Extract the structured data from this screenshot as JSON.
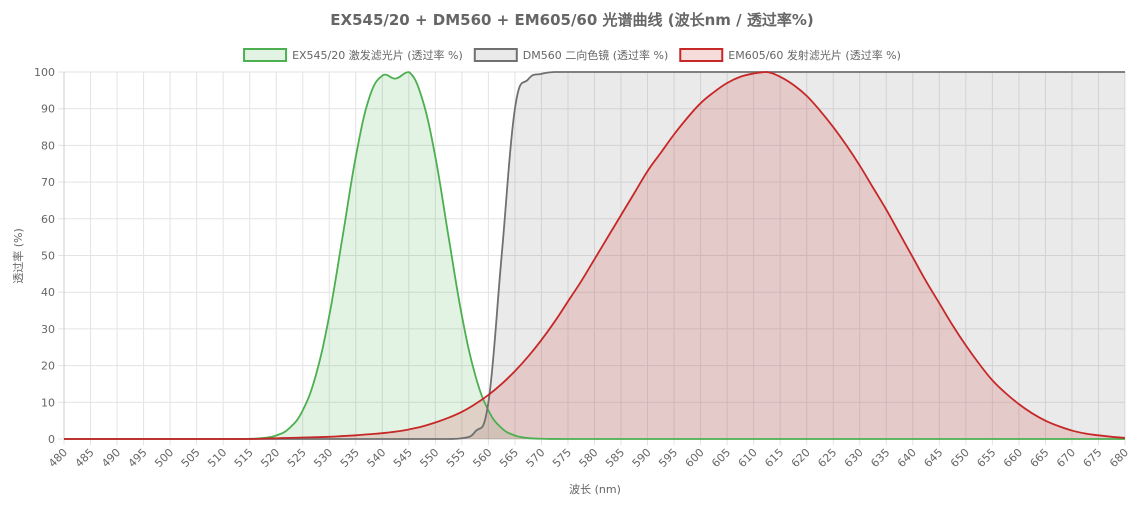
{
  "chart_data": {
    "type": "line",
    "title": "EX545/20 + DM560 + EM605/60 光谱曲线 (波长nm / 透过率%)",
    "xlabel": "波长 (nm)",
    "ylabel": "透过率 (%)",
    "xlim": [
      480,
      680
    ],
    "ylim": [
      0,
      100
    ],
    "x_ticks": [
      480,
      485,
      490,
      495,
      500,
      505,
      510,
      515,
      520,
      525,
      530,
      535,
      540,
      545,
      550,
      555,
      560,
      565,
      570,
      575,
      580,
      585,
      590,
      595,
      600,
      605,
      610,
      615,
      620,
      625,
      630,
      635,
      640,
      645,
      650,
      655,
      660,
      665,
      670,
      675,
      680
    ],
    "y_ticks": [
      0,
      10,
      20,
      30,
      40,
      50,
      60,
      70,
      80,
      90,
      100
    ],
    "grid": true,
    "legend_position": "top",
    "x": [
      480,
      482.5,
      485,
      487.5,
      490,
      492.5,
      495,
      497.5,
      500,
      502.5,
      505,
      507.5,
      510,
      512.5,
      515,
      517.5,
      520,
      522.5,
      525,
      527.5,
      530,
      532.5,
      535,
      537.5,
      540,
      542.5,
      545,
      547.5,
      550,
      552.5,
      555,
      557.5,
      560,
      562.5,
      565,
      567.5,
      570,
      572.5,
      575,
      577.5,
      580,
      582.5,
      585,
      587.5,
      590,
      592.5,
      595,
      597.5,
      600,
      602.5,
      605,
      607.5,
      610,
      612.5,
      615,
      617.5,
      620,
      622.5,
      625,
      627.5,
      630,
      632.5,
      635,
      637.5,
      640,
      642.5,
      645,
      647.5,
      650,
      652.5,
      655,
      657.5,
      660,
      662.5,
      665,
      667.5,
      670,
      672.5,
      675,
      677.5,
      680
    ],
    "series": [
      {
        "name": "EX545/20 激发滤光片 (透过率 %)",
        "color": "#4caf50",
        "fill": "rgba(76,175,80,0.16)",
        "values": [
          0,
          0,
          0,
          0,
          0,
          0,
          0,
          0,
          0,
          0,
          0,
          0,
          0,
          0.01,
          0.06,
          0.26,
          0.96,
          2.96,
          7.8,
          17.5,
          33.6,
          55.0,
          76.9,
          92.8,
          99.0,
          98.2,
          100,
          92.8,
          76.9,
          55.0,
          33.6,
          17.5,
          7.8,
          2.96,
          0.96,
          0.26,
          0.06,
          0.01,
          0,
          0,
          0,
          0,
          0,
          0,
          0,
          0,
          0,
          0,
          0,
          0,
          0,
          0,
          0,
          0,
          0,
          0,
          0,
          0,
          0,
          0,
          0,
          0,
          0,
          0,
          0,
          0,
          0,
          0,
          0,
          0,
          0,
          0,
          0,
          0,
          0,
          0,
          0,
          0,
          0,
          0,
          0
        ]
      },
      {
        "name": "DM560 二向色镜 (透过率 %)",
        "color": "#707070",
        "fill": "rgba(112,112,112,0.15)",
        "values": [
          0,
          0,
          0,
          0,
          0,
          0,
          0,
          0,
          0,
          0,
          0,
          0,
          0,
          0,
          0,
          0,
          0,
          0,
          0,
          0,
          0,
          0,
          0,
          0,
          0,
          0,
          0,
          0,
          0,
          0,
          0.2,
          2,
          10,
          50,
          90,
          98,
          99.5,
          100,
          100,
          100,
          100,
          100,
          100,
          100,
          100,
          100,
          100,
          100,
          100,
          100,
          100,
          100,
          100,
          100,
          100,
          100,
          100,
          100,
          100,
          100,
          100,
          100,
          100,
          100,
          100,
          100,
          100,
          100,
          100,
          100,
          100,
          100,
          100,
          100,
          100,
          100,
          100,
          100,
          100,
          100,
          100
        ]
      },
      {
        "name": "EM605/60 发射滤光片 (透过率 %)",
        "color": "#c62828",
        "fill": "rgba(213,60,60,0.18)",
        "values": [
          0,
          0,
          0,
          0,
          0,
          0,
          0,
          0,
          0,
          0,
          0,
          0,
          0,
          0,
          0,
          0.1,
          0.2,
          0.3,
          0.4,
          0.5,
          0.6,
          0.8,
          1.0,
          1.3,
          1.6,
          2.0,
          2.6,
          3.4,
          4.5,
          5.8,
          7.4,
          9.5,
          12,
          15,
          18.5,
          22.5,
          27,
          32,
          37.5,
          43,
          49,
          55,
          61,
          67,
          73,
          78,
          83,
          87.5,
          91.5,
          94.5,
          97,
          98.7,
          99.6,
          100,
          98.7,
          96.5,
          93.5,
          89.5,
          85,
          80,
          74.5,
          68.5,
          62.5,
          56,
          49.5,
          43,
          37,
          31,
          25.5,
          20.5,
          16,
          12.5,
          9.5,
          7,
          5,
          3.5,
          2.3,
          1.5,
          1,
          0.6,
          0.3
        ]
      }
    ]
  }
}
